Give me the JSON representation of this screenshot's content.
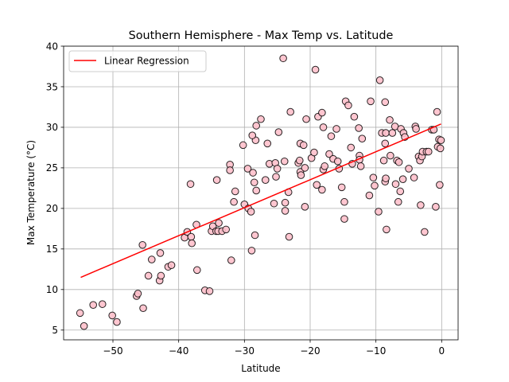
{
  "chart_data": {
    "type": "scatter",
    "title": "Southern Hemisphere - Max Temp vs. Latitude",
    "xlabel": "Latitude",
    "ylabel": "Max Temperature (°C)",
    "xlim": [
      -57.5,
      2.5
    ],
    "ylim": [
      3.8,
      40.0
    ],
    "xticks": [
      -50,
      -40,
      -30,
      -20,
      -10,
      0
    ],
    "yticks": [
      5,
      10,
      15,
      20,
      25,
      30,
      35,
      40
    ],
    "grid": true,
    "legend": {
      "placement": "upper-left",
      "entries": [
        "Linear Regression"
      ]
    },
    "colors": {
      "marker_fill": "#ffc0cb",
      "marker_edge": "#000000",
      "regression": "#ff0000",
      "grid": "#b0b0b0"
    },
    "series": [
      {
        "kind": "scatter",
        "points": [
          [
            -55,
            7.1
          ],
          [
            -54.4,
            5.5
          ],
          [
            -53,
            8.1
          ],
          [
            -51.6,
            8.2
          ],
          [
            -50.1,
            6.8
          ],
          [
            -49.4,
            6.0
          ],
          [
            -46.4,
            9.2
          ],
          [
            -46.2,
            9.5
          ],
          [
            -45.5,
            15.5
          ],
          [
            -45.4,
            7.7
          ],
          [
            -44.1,
            13.7
          ],
          [
            -44.6,
            11.7
          ],
          [
            -42.9,
            11.1
          ],
          [
            -42.7,
            11.7
          ],
          [
            -42.8,
            14.5
          ],
          [
            -41.6,
            12.8
          ],
          [
            -41.1,
            13.0
          ],
          [
            -39.1,
            16.4
          ],
          [
            -38.7,
            17.1
          ],
          [
            -38.1,
            16.5
          ],
          [
            -38.0,
            15.7
          ],
          [
            -38.2,
            23.0
          ],
          [
            -37.3,
            18.0
          ],
          [
            -37.2,
            12.4
          ],
          [
            -36.0,
            9.9
          ],
          [
            -35.3,
            9.8
          ],
          [
            -35.0,
            17.2
          ],
          [
            -34.8,
            17.8
          ],
          [
            -34.3,
            17.2
          ],
          [
            -34.0,
            17.2
          ],
          [
            -33.9,
            18.2
          ],
          [
            -33.4,
            17.2
          ],
          [
            -32.8,
            17.4
          ],
          [
            -31.6,
            20.8
          ],
          [
            -34.2,
            23.5
          ],
          [
            -32.2,
            25.4
          ],
          [
            -32.2,
            24.7
          ],
          [
            -32.0,
            13.6
          ],
          [
            -31.4,
            22.1
          ],
          [
            -30.2,
            27.8
          ],
          [
            -30.0,
            20.5
          ],
          [
            -29.4,
            20.0
          ],
          [
            -29.5,
            24.9
          ],
          [
            -29.0,
            19.6
          ],
          [
            -28.9,
            14.8
          ],
          [
            -28.7,
            24.4
          ],
          [
            -28.5,
            23.2
          ],
          [
            -28.4,
            16.7
          ],
          [
            -28.2,
            22.2
          ],
          [
            -28.3,
            28.4
          ],
          [
            -28.2,
            30.2
          ],
          [
            -28.8,
            29.0
          ],
          [
            -27.5,
            31.0
          ],
          [
            -26.8,
            23.5
          ],
          [
            -26.5,
            28.0
          ],
          [
            -26.2,
            25.5
          ],
          [
            -25.5,
            20.6
          ],
          [
            -25.2,
            23.9
          ],
          [
            -25.3,
            25.6
          ],
          [
            -25.0,
            24.9
          ],
          [
            -24.8,
            29.4
          ],
          [
            -24.1,
            38.5
          ],
          [
            -23.9,
            25.8
          ],
          [
            -23.8,
            20.7
          ],
          [
            -23.8,
            19.7
          ],
          [
            -23.3,
            22.0
          ],
          [
            -23.2,
            16.5
          ],
          [
            -23.0,
            31.9
          ],
          [
            -21.8,
            25.6
          ],
          [
            -21.5,
            24.5
          ],
          [
            -21.6,
            25.9
          ],
          [
            -21.4,
            24.1
          ],
          [
            -21.5,
            28.0
          ],
          [
            -21.0,
            27.8
          ],
          [
            -20.8,
            25.0
          ],
          [
            -20.8,
            20.2
          ],
          [
            -20.6,
            31.0
          ],
          [
            -19.8,
            26.2
          ],
          [
            -19.4,
            26.9
          ],
          [
            -19.2,
            37.1
          ],
          [
            -19.0,
            22.9
          ],
          [
            -18.8,
            31.3
          ],
          [
            -18.2,
            31.8
          ],
          [
            -18.2,
            22.3
          ],
          [
            -18.0,
            30.0
          ],
          [
            -18.0,
            24.8
          ],
          [
            -17.8,
            25.2
          ],
          [
            -17.1,
            26.7
          ],
          [
            -16.8,
            28.9
          ],
          [
            -16.5,
            26.1
          ],
          [
            -16.0,
            29.8
          ],
          [
            -15.8,
            25.8
          ],
          [
            -15.6,
            24.9
          ],
          [
            -15.2,
            22.6
          ],
          [
            -14.8,
            20.8
          ],
          [
            -14.8,
            18.7
          ],
          [
            -14.6,
            33.2
          ],
          [
            -14.2,
            32.7
          ],
          [
            -13.8,
            27.5
          ],
          [
            -13.6,
            25.5
          ],
          [
            -13.3,
            31.3
          ],
          [
            -12.6,
            29.9
          ],
          [
            -12.5,
            26.5
          ],
          [
            -12.5,
            26.0
          ],
          [
            -12.3,
            25.2
          ],
          [
            -12.1,
            28.6
          ],
          [
            -11.0,
            21.6
          ],
          [
            -10.8,
            33.2
          ],
          [
            -10.4,
            23.8
          ],
          [
            -10.2,
            22.8
          ],
          [
            -9.6,
            19.6
          ],
          [
            -9.4,
            35.8
          ],
          [
            -9.1,
            29.3
          ],
          [
            -8.6,
            33.1
          ],
          [
            -8.8,
            25.9
          ],
          [
            -8.6,
            28.0
          ],
          [
            -8.6,
            23.3
          ],
          [
            -8.5,
            29.3
          ],
          [
            -8.5,
            23.7
          ],
          [
            -8.4,
            17.4
          ],
          [
            -7.9,
            30.9
          ],
          [
            -7.8,
            26.5
          ],
          [
            -7.5,
            29.3
          ],
          [
            -7.1,
            30.1
          ],
          [
            -7.0,
            23.0
          ],
          [
            -6.8,
            25.9
          ],
          [
            -6.5,
            25.7
          ],
          [
            -6.6,
            20.8
          ],
          [
            -6.3,
            22.1
          ],
          [
            -6.2,
            29.8
          ],
          [
            -5.9,
            23.6
          ],
          [
            -5.8,
            29.3
          ],
          [
            -5.6,
            28.8
          ],
          [
            -5.0,
            24.9
          ],
          [
            -4.2,
            23.8
          ],
          [
            -4.0,
            30.1
          ],
          [
            -3.9,
            29.8
          ],
          [
            -3.5,
            26.4
          ],
          [
            -3.3,
            25.9
          ],
          [
            -3.2,
            20.4
          ],
          [
            -3.0,
            26.4
          ],
          [
            -2.9,
            27.0
          ],
          [
            -2.6,
            17.1
          ],
          [
            -2.3,
            27.0
          ],
          [
            -2.0,
            27.0
          ],
          [
            -1.5,
            29.7
          ],
          [
            -1.2,
            29.7
          ],
          [
            -0.9,
            20.2
          ],
          [
            -0.7,
            31.9
          ],
          [
            -0.6,
            27.6
          ],
          [
            -0.4,
            28.5
          ],
          [
            -0.3,
            22.9
          ],
          [
            -0.2,
            27.4
          ],
          [
            -0.1,
            28.4
          ]
        ]
      },
      {
        "kind": "line",
        "name": "Linear Regression",
        "points": [
          [
            -54.9,
            11.5
          ],
          [
            -0.1,
            30.4
          ]
        ]
      }
    ]
  }
}
